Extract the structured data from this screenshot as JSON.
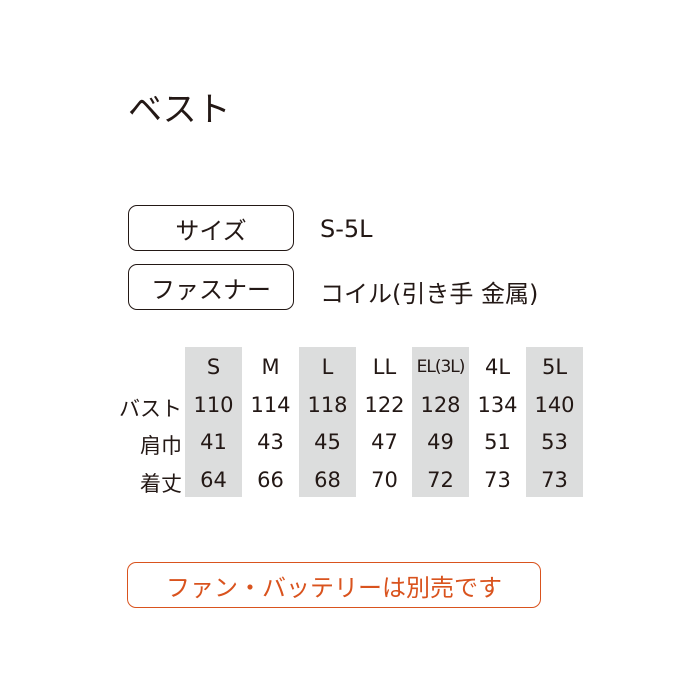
{
  "title": "ベスト",
  "specs": [
    {
      "label": "サイズ",
      "value": "S-5L"
    },
    {
      "label": "ファスナー",
      "value": "コイル(引き手 金属)"
    }
  ],
  "size_table": {
    "sizes": [
      "S",
      "M",
      "L",
      "LL",
      "EL(3L)",
      "4L",
      "5L"
    ],
    "highlight_color": "#dcdddd",
    "rows": [
      {
        "label": "バスト",
        "values": [
          "110",
          "114",
          "118",
          "122",
          "128",
          "134",
          "140"
        ]
      },
      {
        "label": "肩巾",
        "values": [
          "41",
          "43",
          "45",
          "47",
          "49",
          "51",
          "53"
        ]
      },
      {
        "label": "着丈",
        "values": [
          "64",
          "66",
          "68",
          "70",
          "72",
          "73",
          "73"
        ]
      }
    ]
  },
  "note": {
    "text": "ファン・バッテリーは別売です",
    "color": "#d9531e"
  }
}
